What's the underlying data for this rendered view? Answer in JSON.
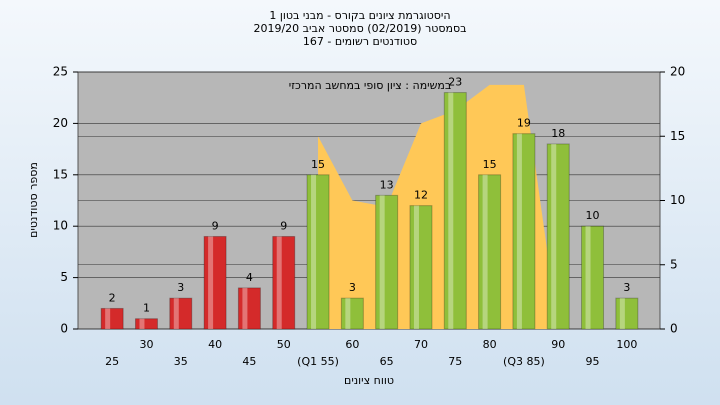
{
  "chart_data": {
    "type": "bar",
    "title_lines": [
      "היסטוגרמת ציונים בקורס - מבני בטון 1",
      "בסמסטר (02/2019)  סמסטר אביב 2019/20",
      "סטודנטים רשומים - 167"
    ],
    "annotation": "במשימה : ציון סופי במחשב המרכזי",
    "x_label": "טווח ציונים",
    "y_label": "מספר סטודנטים",
    "categories": [
      "25",
      "30",
      "35",
      "40",
      "45",
      "50",
      "(Q1 55)",
      "60",
      "65",
      "70",
      "75",
      "80",
      "(Q3 85)",
      "90",
      "95",
      "100"
    ],
    "values": [
      2,
      1,
      3,
      9,
      4,
      9,
      15,
      3,
      13,
      12,
      23,
      15,
      19,
      18,
      10,
      3
    ],
    "colors": [
      "#d42a2a",
      "#d42a2a",
      "#d42a2a",
      "#d42a2a",
      "#d42a2a",
      "#d42a2a",
      "#8fbf3a",
      "#8fbf3a",
      "#8fbf3a",
      "#8fbf3a",
      "#8fbf3a",
      "#8fbf3a",
      "#8fbf3a",
      "#8fbf3a",
      "#8fbf3a",
      "#8fbf3a"
    ],
    "area": {
      "color": "#ffc857",
      "axis": "y2",
      "values": [
        null,
        null,
        null,
        null,
        null,
        null,
        15,
        10,
        9.5,
        16,
        17,
        19,
        19,
        0,
        null,
        null
      ]
    },
    "ylim": [
      0,
      25
    ],
    "yticks": [
      0,
      5,
      10,
      15,
      20,
      25
    ],
    "y2lim": [
      0,
      20
    ],
    "y2ticks": [
      0,
      5,
      10,
      15,
      20
    ],
    "grid": true
  }
}
